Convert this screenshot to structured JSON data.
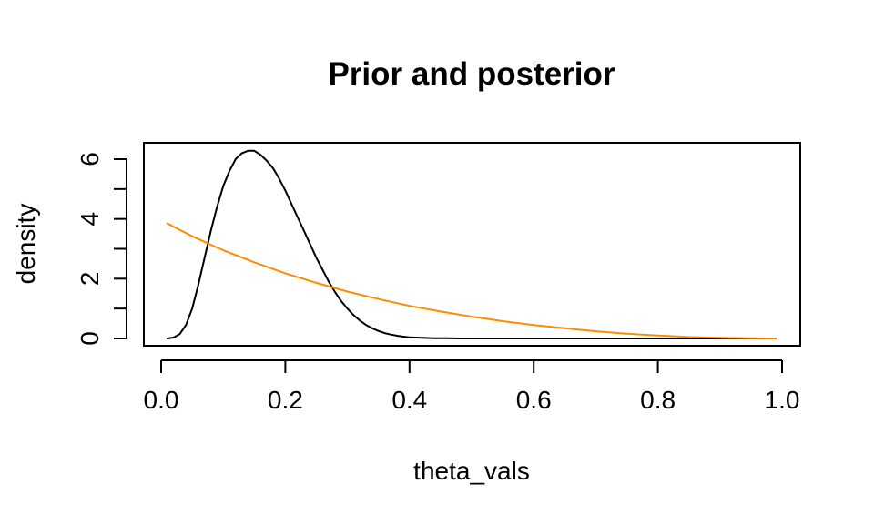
{
  "chart_data": {
    "type": "line",
    "title": "Prior and posterior",
    "xlabel": "theta_vals",
    "ylabel": "density",
    "xlim": [
      0.0,
      1.0
    ],
    "ylim": [
      0,
      6.3
    ],
    "x_ticks": [
      "0.0",
      "0.2",
      "0.4",
      "0.6",
      "0.8",
      "1.0"
    ],
    "y_ticks": [
      "0",
      "2",
      "4",
      "6"
    ],
    "y_minor_ticks": [
      1,
      3,
      5
    ],
    "grid": false,
    "legend": null,
    "series": [
      {
        "color": "#000000",
        "x": [
          0.01,
          0.02,
          0.03,
          0.04,
          0.05,
          0.06,
          0.07,
          0.08,
          0.09,
          0.1,
          0.11,
          0.12,
          0.13,
          0.14,
          0.15,
          0.16,
          0.17,
          0.18,
          0.19,
          0.2,
          0.21,
          0.22,
          0.23,
          0.24,
          0.25,
          0.26,
          0.27,
          0.28,
          0.29,
          0.3,
          0.31,
          0.32,
          0.33,
          0.34,
          0.35,
          0.36,
          0.37,
          0.38,
          0.39,
          0.4,
          0.42,
          0.44,
          0.46,
          0.48,
          0.5,
          0.55,
          0.6,
          0.7,
          0.8,
          0.9,
          0.99
        ],
        "y": [
          0.0,
          0.03,
          0.15,
          0.45,
          1.0,
          1.8,
          2.7,
          3.6,
          4.4,
          5.1,
          5.6,
          6.0,
          6.2,
          6.28,
          6.28,
          6.15,
          5.95,
          5.7,
          5.35,
          4.95,
          4.5,
          4.05,
          3.6,
          3.15,
          2.7,
          2.3,
          1.9,
          1.55,
          1.25,
          1.0,
          0.78,
          0.6,
          0.45,
          0.34,
          0.25,
          0.18,
          0.13,
          0.09,
          0.06,
          0.04,
          0.02,
          0.01,
          0.005,
          0.0,
          0.0,
          0.0,
          0.0,
          0.0,
          0.0,
          0.0,
          0.0
        ]
      },
      {
        "color": "#ff8c00",
        "x": [
          0.01,
          0.05,
          0.1,
          0.15,
          0.2,
          0.25,
          0.3,
          0.35,
          0.4,
          0.45,
          0.5,
          0.55,
          0.6,
          0.65,
          0.7,
          0.75,
          0.8,
          0.85,
          0.9,
          0.95,
          0.99
        ],
        "y": [
          3.85,
          3.42,
          2.95,
          2.55,
          2.18,
          1.86,
          1.57,
          1.32,
          1.09,
          0.9,
          0.73,
          0.58,
          0.45,
          0.34,
          0.24,
          0.16,
          0.1,
          0.05,
          0.02,
          0.005,
          0.0
        ]
      }
    ]
  }
}
